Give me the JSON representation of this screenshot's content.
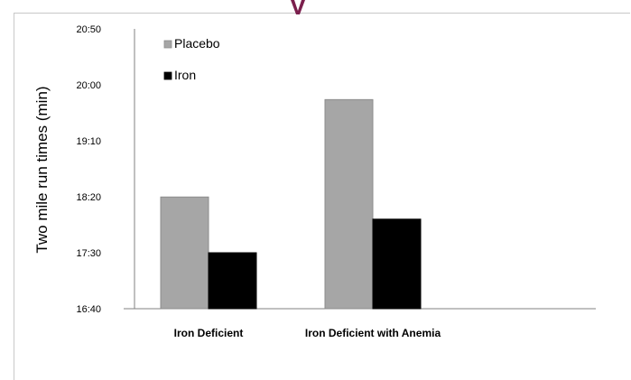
{
  "chart_data": {
    "type": "bar",
    "ylabel": "Two mile run times (min)",
    "categories": [
      "Iron Deficient",
      "Iron Deficient with Anemia"
    ],
    "series": [
      {
        "name": "Placebo",
        "values": [
          18.33,
          19.78
        ],
        "color": "#a6a6a6"
      },
      {
        "name": "Iron",
        "values": [
          17.5,
          18.0
        ],
        "color": "#000000"
      }
    ],
    "yticks": [
      "16:40",
      "17:30",
      "18:20",
      "19:10",
      "20:00",
      "20:50"
    ],
    "ytick_values": [
      16.667,
      17.5,
      18.333,
      19.167,
      20.0,
      20.833
    ],
    "ylim": [
      16.667,
      20.833
    ],
    "legend_position": "top-left",
    "grid": false
  }
}
